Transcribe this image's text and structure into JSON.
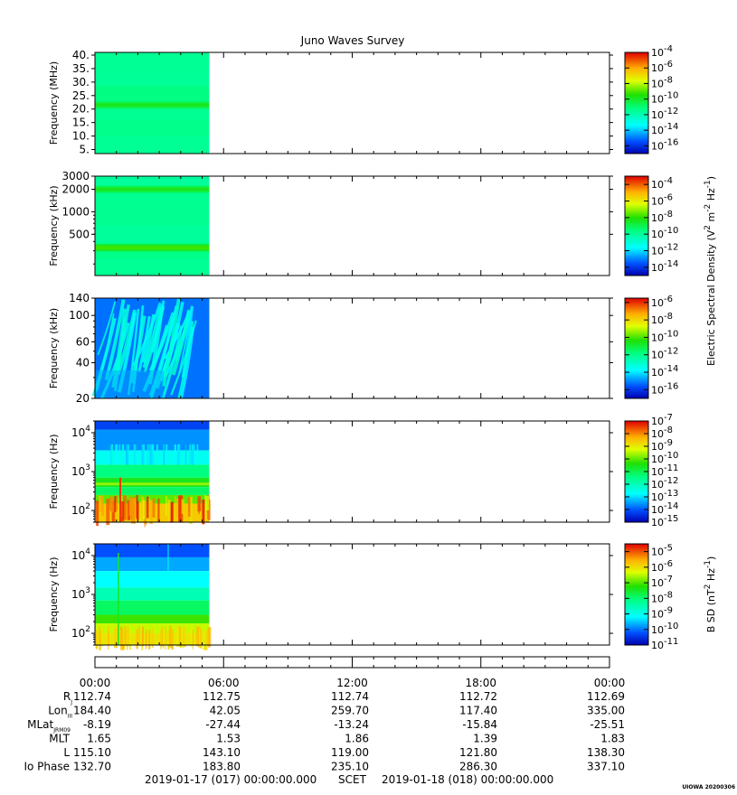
{
  "chart_data": {
    "type": "heatmap",
    "title": "Juno Waves Survey",
    "data_coverage": [
      "00:00",
      "05:20"
    ],
    "panels": [
      {
        "ylabel": "Frequency (MHz)",
        "yscale": "linear",
        "ylim": [
          3.5,
          41
        ],
        "yticks": [
          "40.",
          "35.",
          "30.",
          "25.",
          "20.",
          "15.",
          "10.",
          "5."
        ],
        "ytick_values": [
          40,
          35,
          30,
          25,
          20,
          15,
          10,
          5
        ],
        "features": [
          {
            "name": "",
            "y": 21.5,
            "level": 0.5
          }
        ],
        "background_level": 0.43,
        "colorbar": {
          "labels": [
            "-4",
            "-6",
            "-8",
            "-10",
            "-12",
            "-14",
            "-16"
          ],
          "min": -17,
          "max": -4
        }
      },
      {
        "ylabel": "Frequency (kHz)",
        "yscale": "log",
        "ylim": [
          140,
          3000
        ],
        "yticks": [
          "3000",
          "2000",
          "1000",
          "500"
        ],
        "ytick_values": [
          3000,
          2000,
          1000,
          500
        ],
        "features": [
          {
            "name": "",
            "y": 2000,
            "level": 0.5
          },
          {
            "name": "",
            "y": 330,
            "level": 0.55
          }
        ],
        "background_level": 0.43,
        "colorbar": {
          "labels": [
            "-4",
            "-6",
            "-8",
            "-10",
            "-12",
            "-14"
          ],
          "min": -15,
          "max": -3
        }
      },
      {
        "ylabel": "Frequency (kHz)",
        "yscale": "log",
        "ylim": [
          20,
          140
        ],
        "yticks": [
          "140",
          "100",
          "60",
          "40",
          "20"
        ],
        "ytick_values": [
          140,
          100,
          60,
          40,
          20
        ],
        "features": [],
        "background_level": 0.2,
        "colorbar": {
          "labels": [
            "-6",
            "-8",
            "-10",
            "-12",
            "-14",
            "-16"
          ],
          "min": -17,
          "max": -5.5
        }
      },
      {
        "ylabel": "Frequency (Hz)",
        "yscale": "log",
        "ylim": [
          50,
          20000
        ],
        "yticks": [
          "4",
          "3",
          "2"
        ],
        "ytick_values": [
          10000,
          1000,
          100
        ],
        "ytick_base": "10",
        "features": [],
        "background_level": 0.3,
        "colorbar": {
          "labels": [
            "-7",
            "-8",
            "-9",
            "-10",
            "-11",
            "-12",
            "-13",
            "-14",
            "-15"
          ],
          "min": -15,
          "max": -7
        }
      },
      {
        "ylabel": "Frequency (Hz)",
        "yscale": "log",
        "ylim": [
          50,
          20000
        ],
        "yticks": [
          "4",
          "3",
          "2"
        ],
        "ytick_values": [
          10000,
          1000,
          100
        ],
        "ytick_base": "10",
        "features": [],
        "background_level": 0.25,
        "colorbar": {
          "labels": [
            "-5",
            "-6",
            "-7",
            "-8",
            "-9",
            "-10",
            "-11"
          ],
          "min": -11,
          "max": -4.5
        }
      }
    ],
    "colorbar_labels": {
      "electric_label": "Electric Spectral Density (V",
      "electric_label_mid": " m",
      "electric_label_end": " Hz",
      "electric_close": ")",
      "magnetic_label": "B SD (nT",
      "magnetic_label_end": " Hz",
      "magnetic_close": ")",
      "sup2": "2",
      "supm2": "-2",
      "supm1": "-1",
      "tick_base": "10"
    },
    "x_axis": {
      "ticks": [
        "00:00",
        "06:00",
        "12:00",
        "18:00",
        "00:00"
      ]
    },
    "ephemeris": [
      {
        "label": "R",
        "sub": "J",
        "values": [
          "112.74",
          "112.75",
          "112.74",
          "112.72",
          "112.69"
        ]
      },
      {
        "label": "Lon",
        "sub": "III",
        "values": [
          "184.40",
          "42.05",
          "259.70",
          "117.40",
          "335.00"
        ]
      },
      {
        "label": "MLat",
        "sub": "JRM09",
        "values": [
          "-8.19",
          "-27.44",
          "-13.24",
          "-15.84",
          "-25.51"
        ]
      },
      {
        "label": "MLT",
        "sub": "",
        "values": [
          "1.65",
          "1.53",
          "1.86",
          "1.39",
          "1.83"
        ]
      },
      {
        "label": "L",
        "sub": "",
        "values": [
          "115.10",
          "143.10",
          "119.00",
          "121.80",
          "138.30"
        ]
      },
      {
        "label": "Io Phase",
        "sub": "",
        "values": [
          "132.70",
          "183.80",
          "235.10",
          "286.30",
          "337.10"
        ]
      }
    ],
    "footer": {
      "start": "2019-01-17 (017) 00:00:00.000",
      "mid": "SCET",
      "end": "2019-01-18 (018) 00:00:00.000"
    },
    "stamp": "UIOWA 20200306"
  }
}
